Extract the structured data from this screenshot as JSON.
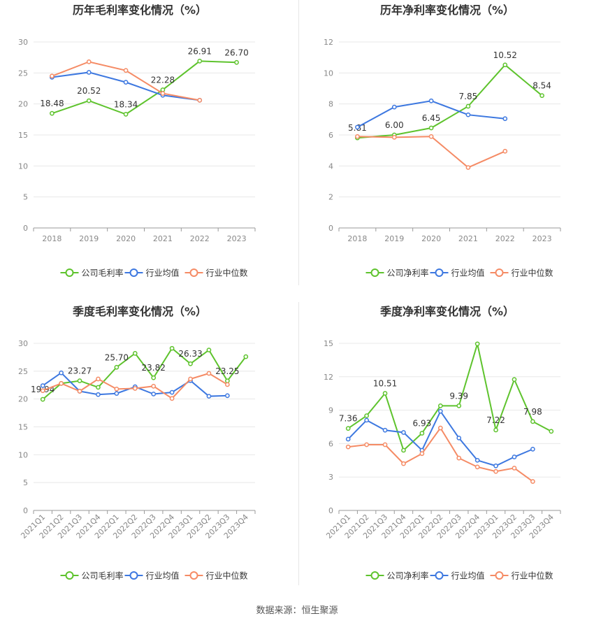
{
  "source_text": "数据来源：恒生聚源",
  "colors": {
    "company": "#5ec32d",
    "industry_avg": "#3d78e0",
    "industry_median": "#f58b65",
    "grid": "#e8e8e8",
    "axis": "#999999"
  },
  "chart_data": [
    {
      "type": "line",
      "title": "历年毛利率变化情况（%）",
      "categories": [
        "2018",
        "2019",
        "2020",
        "2021",
        "2022",
        "2023"
      ],
      "ylim": [
        0,
        30
      ],
      "yticks": [
        0,
        5,
        10,
        15,
        20,
        25,
        30
      ],
      "legend": [
        "公司毛利率",
        "行业均值",
        "行业中位数"
      ],
      "series": [
        {
          "name": "公司毛利率",
          "color": "#5ec32d",
          "values": [
            18.48,
            20.52,
            18.34,
            22.28,
            26.91,
            26.7
          ],
          "labels": [
            "18.48",
            "20.52",
            "18.34",
            "22.28",
            "26.91",
            "26.70"
          ]
        },
        {
          "name": "行业均值",
          "color": "#3d78e0",
          "values": [
            24.3,
            25.1,
            23.5,
            21.4,
            20.6,
            null
          ]
        },
        {
          "name": "行业中位数",
          "color": "#f58b65",
          "values": [
            24.5,
            26.8,
            25.4,
            21.7,
            20.6,
            null
          ]
        }
      ]
    },
    {
      "type": "line",
      "title": "历年净利率变化情况（%）",
      "categories": [
        "2018",
        "2019",
        "2020",
        "2021",
        "2022",
        "2023"
      ],
      "ylim": [
        0,
        12
      ],
      "yticks": [
        0,
        2,
        4,
        6,
        8,
        10,
        12
      ],
      "legend": [
        "公司净利率",
        "行业均值",
        "行业中位数"
      ],
      "series": [
        {
          "name": "公司净利率",
          "color": "#5ec32d",
          "values": [
            5.81,
            6.0,
            6.45,
            7.85,
            10.52,
            8.54
          ],
          "labels": [
            "5.81",
            "6.00",
            "6.45",
            "7.85",
            "10.52",
            "8.54"
          ]
        },
        {
          "name": "行业均值",
          "color": "#3d78e0",
          "values": [
            6.5,
            7.8,
            8.2,
            7.3,
            7.05,
            null
          ]
        },
        {
          "name": "行业中位数",
          "color": "#f58b65",
          "values": [
            5.9,
            5.85,
            5.9,
            3.9,
            4.95,
            null
          ]
        }
      ]
    },
    {
      "type": "line",
      "title": "季度毛利率变化情况（%）",
      "categories": [
        "2021Q1",
        "2021Q2",
        "2021Q3",
        "2021Q4",
        "2022Q1",
        "2022Q2",
        "2022Q3",
        "2022Q4",
        "2023Q1",
        "2023Q2",
        "2023Q3",
        "2023Q4"
      ],
      "ylim": [
        0,
        30
      ],
      "yticks": [
        0,
        5,
        10,
        15,
        20,
        25,
        30
      ],
      "legend": [
        "公司毛利率",
        "行业均值",
        "行业中位数"
      ],
      "series": [
        {
          "name": "公司毛利率",
          "color": "#5ec32d",
          "values": [
            19.94,
            22.8,
            23.27,
            22.1,
            25.7,
            28.2,
            23.82,
            29.1,
            26.33,
            28.8,
            23.25,
            27.6
          ],
          "labels": [
            "19.94",
            "",
            "23.27",
            "",
            "25.70",
            "",
            "23.82",
            "",
            "26.33",
            "",
            "23.25",
            ""
          ]
        },
        {
          "name": "行业均值",
          "color": "#3d78e0",
          "values": [
            22.4,
            24.7,
            21.4,
            20.8,
            21.0,
            22.2,
            20.9,
            21.2,
            23.3,
            20.5,
            20.6,
            null
          ]
        },
        {
          "name": "行业中位数",
          "color": "#f58b65",
          "values": [
            21.5,
            22.8,
            21.4,
            23.6,
            21.8,
            21.9,
            22.3,
            20.1,
            23.6,
            24.6,
            22.6,
            null
          ]
        }
      ]
    },
    {
      "type": "line",
      "title": "季度净利率变化情况（%）",
      "categories": [
        "2021Q1",
        "2021Q2",
        "2021Q3",
        "2021Q4",
        "2022Q1",
        "2022Q2",
        "2022Q3",
        "2022Q4",
        "2023Q1",
        "2023Q2",
        "2023Q3",
        "2023Q4"
      ],
      "ylim": [
        0,
        15
      ],
      "yticks": [
        0,
        3,
        6,
        9,
        12,
        15
      ],
      "legend": [
        "公司净利率",
        "行业均值",
        "行业中位数"
      ],
      "series": [
        {
          "name": "公司净利率",
          "color": "#5ec32d",
          "values": [
            7.36,
            8.5,
            10.51,
            5.4,
            6.93,
            9.39,
            9.39,
            14.95,
            7.22,
            11.75,
            7.98,
            7.1
          ],
          "labels": [
            "7.36",
            "",
            "10.51",
            "",
            "6.93",
            "",
            "9.39",
            "",
            "7.22",
            "",
            "7.98",
            ""
          ]
        },
        {
          "name": "行业均值",
          "color": "#3d78e0",
          "values": [
            6.4,
            8.1,
            7.2,
            7.0,
            5.4,
            8.9,
            6.5,
            4.5,
            4.0,
            4.8,
            5.5,
            null
          ]
        },
        {
          "name": "行业中位数",
          "color": "#f58b65",
          "values": [
            5.7,
            5.9,
            5.9,
            4.2,
            5.1,
            7.4,
            4.7,
            3.9,
            3.5,
            3.8,
            2.6,
            null
          ]
        }
      ]
    }
  ]
}
